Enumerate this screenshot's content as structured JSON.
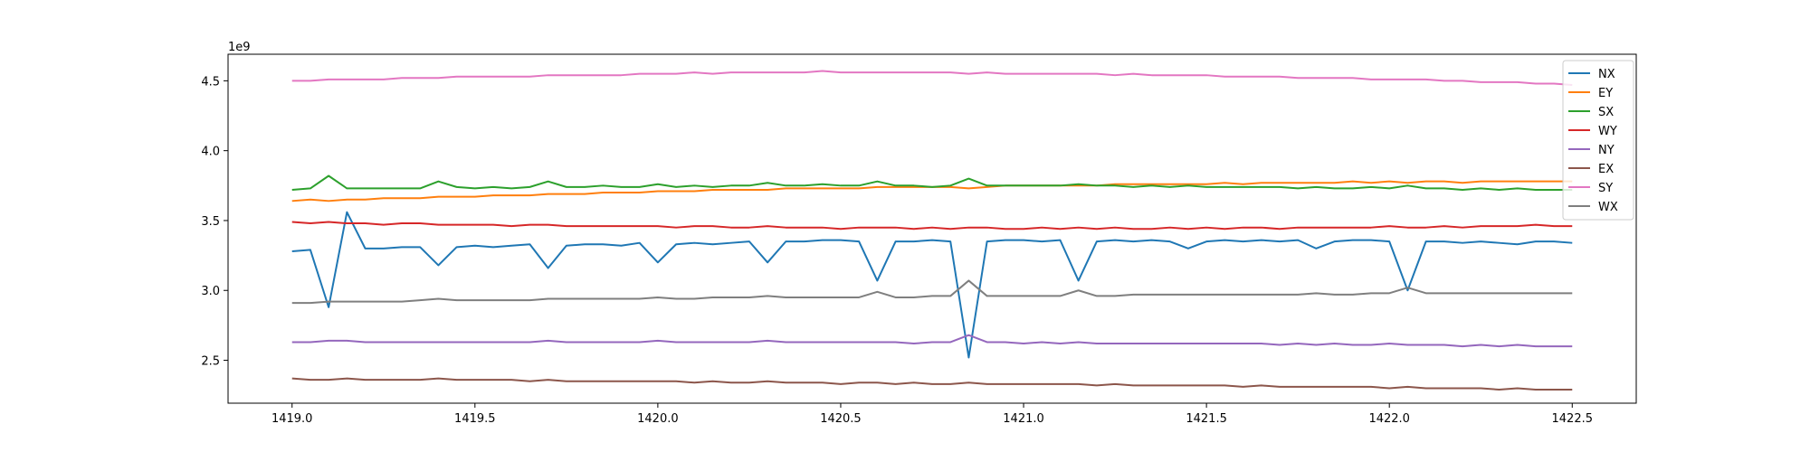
{
  "chart_data": {
    "type": "line",
    "x": [
      1419,
      1419.05,
      1419.1,
      1419.15,
      1419.2,
      1419.25,
      1419.3,
      1419.35,
      1419.4,
      1419.45,
      1419.5,
      1419.55,
      1419.6,
      1419.65,
      1419.7,
      1419.75,
      1419.8,
      1419.85,
      1419.9,
      1419.95,
      1420,
      1420.05,
      1420.1,
      1420.15,
      1420.2,
      1420.25,
      1420.3,
      1420.35,
      1420.4,
      1420.45,
      1420.5,
      1420.55,
      1420.6,
      1420.65,
      1420.7,
      1420.75,
      1420.8,
      1420.85,
      1420.9,
      1420.95,
      1421,
      1421.05,
      1421.1,
      1421.15,
      1421.2,
      1421.25,
      1421.3,
      1421.35,
      1421.4,
      1421.45,
      1421.5,
      1421.55,
      1421.6,
      1421.65,
      1421.7,
      1421.75,
      1421.8,
      1421.85,
      1421.9,
      1421.95,
      1422,
      1422.05,
      1422.1,
      1422.15,
      1422.2,
      1422.25,
      1422.3,
      1422.35,
      1422.4,
      1422.45,
      1422.5
    ],
    "series": [
      {
        "name": "NX",
        "color": "#1f77b4",
        "values": [
          3.28,
          3.29,
          2.88,
          3.56,
          3.3,
          3.3,
          3.31,
          3.31,
          3.18,
          3.31,
          3.32,
          3.31,
          3.32,
          3.33,
          3.16,
          3.32,
          3.33,
          3.33,
          3.32,
          3.34,
          3.2,
          3.33,
          3.34,
          3.33,
          3.34,
          3.35,
          3.2,
          3.35,
          3.35,
          3.36,
          3.36,
          3.35,
          3.07,
          3.35,
          3.35,
          3.36,
          3.35,
          2.52,
          3.35,
          3.36,
          3.36,
          3.35,
          3.36,
          3.07,
          3.35,
          3.36,
          3.35,
          3.36,
          3.35,
          3.3,
          3.35,
          3.36,
          3.35,
          3.36,
          3.35,
          3.36,
          3.3,
          3.35,
          3.36,
          3.36,
          3.35,
          3.0,
          3.35,
          3.35,
          3.34,
          3.35,
          3.34,
          3.33,
          3.35,
          3.35,
          3.34
        ]
      },
      {
        "name": "EY",
        "color": "#ff7f0e",
        "values": [
          3.64,
          3.65,
          3.64,
          3.65,
          3.65,
          3.66,
          3.66,
          3.66,
          3.67,
          3.67,
          3.67,
          3.68,
          3.68,
          3.68,
          3.69,
          3.69,
          3.69,
          3.7,
          3.7,
          3.7,
          3.71,
          3.71,
          3.71,
          3.72,
          3.72,
          3.72,
          3.72,
          3.73,
          3.73,
          3.73,
          3.73,
          3.73,
          3.74,
          3.74,
          3.74,
          3.74,
          3.74,
          3.73,
          3.74,
          3.75,
          3.75,
          3.75,
          3.75,
          3.75,
          3.75,
          3.76,
          3.76,
          3.76,
          3.76,
          3.76,
          3.76,
          3.77,
          3.76,
          3.77,
          3.77,
          3.77,
          3.77,
          3.77,
          3.78,
          3.77,
          3.78,
          3.77,
          3.78,
          3.78,
          3.77,
          3.78,
          3.78,
          3.78,
          3.78,
          3.78,
          3.78
        ]
      },
      {
        "name": "SX",
        "color": "#2ca02c",
        "values": [
          3.72,
          3.73,
          3.82,
          3.73,
          3.73,
          3.73,
          3.73,
          3.73,
          3.78,
          3.74,
          3.73,
          3.74,
          3.73,
          3.74,
          3.78,
          3.74,
          3.74,
          3.75,
          3.74,
          3.74,
          3.76,
          3.74,
          3.75,
          3.74,
          3.75,
          3.75,
          3.77,
          3.75,
          3.75,
          3.76,
          3.75,
          3.75,
          3.78,
          3.75,
          3.75,
          3.74,
          3.75,
          3.8,
          3.75,
          3.75,
          3.75,
          3.75,
          3.75,
          3.76,
          3.75,
          3.75,
          3.74,
          3.75,
          3.74,
          3.75,
          3.74,
          3.74,
          3.74,
          3.74,
          3.74,
          3.73,
          3.74,
          3.73,
          3.73,
          3.74,
          3.73,
          3.75,
          3.73,
          3.73,
          3.72,
          3.73,
          3.72,
          3.73,
          3.72,
          3.72,
          3.72
        ]
      },
      {
        "name": "WY",
        "color": "#d62728",
        "values": [
          3.49,
          3.48,
          3.49,
          3.48,
          3.48,
          3.47,
          3.48,
          3.48,
          3.47,
          3.47,
          3.47,
          3.47,
          3.46,
          3.47,
          3.47,
          3.46,
          3.46,
          3.46,
          3.46,
          3.46,
          3.46,
          3.45,
          3.46,
          3.46,
          3.45,
          3.45,
          3.46,
          3.45,
          3.45,
          3.45,
          3.44,
          3.45,
          3.45,
          3.45,
          3.44,
          3.45,
          3.44,
          3.45,
          3.45,
          3.44,
          3.44,
          3.45,
          3.44,
          3.45,
          3.44,
          3.45,
          3.44,
          3.44,
          3.45,
          3.44,
          3.45,
          3.44,
          3.45,
          3.45,
          3.44,
          3.45,
          3.45,
          3.45,
          3.45,
          3.45,
          3.46,
          3.45,
          3.45,
          3.46,
          3.45,
          3.46,
          3.46,
          3.46,
          3.47,
          3.46,
          3.46
        ]
      },
      {
        "name": "NY",
        "color": "#9467bd",
        "values": [
          2.63,
          2.63,
          2.64,
          2.64,
          2.63,
          2.63,
          2.63,
          2.63,
          2.63,
          2.63,
          2.63,
          2.63,
          2.63,
          2.63,
          2.64,
          2.63,
          2.63,
          2.63,
          2.63,
          2.63,
          2.64,
          2.63,
          2.63,
          2.63,
          2.63,
          2.63,
          2.64,
          2.63,
          2.63,
          2.63,
          2.63,
          2.63,
          2.63,
          2.63,
          2.62,
          2.63,
          2.63,
          2.68,
          2.63,
          2.63,
          2.62,
          2.63,
          2.62,
          2.63,
          2.62,
          2.62,
          2.62,
          2.62,
          2.62,
          2.62,
          2.62,
          2.62,
          2.62,
          2.62,
          2.61,
          2.62,
          2.61,
          2.62,
          2.61,
          2.61,
          2.62,
          2.61,
          2.61,
          2.61,
          2.6,
          2.61,
          2.6,
          2.61,
          2.6,
          2.6,
          2.6
        ]
      },
      {
        "name": "EX",
        "color": "#8c564b",
        "values": [
          2.37,
          2.36,
          2.36,
          2.37,
          2.36,
          2.36,
          2.36,
          2.36,
          2.37,
          2.36,
          2.36,
          2.36,
          2.36,
          2.35,
          2.36,
          2.35,
          2.35,
          2.35,
          2.35,
          2.35,
          2.35,
          2.35,
          2.34,
          2.35,
          2.34,
          2.34,
          2.35,
          2.34,
          2.34,
          2.34,
          2.33,
          2.34,
          2.34,
          2.33,
          2.34,
          2.33,
          2.33,
          2.34,
          2.33,
          2.33,
          2.33,
          2.33,
          2.33,
          2.33,
          2.32,
          2.33,
          2.32,
          2.32,
          2.32,
          2.32,
          2.32,
          2.32,
          2.31,
          2.32,
          2.31,
          2.31,
          2.31,
          2.31,
          2.31,
          2.31,
          2.3,
          2.31,
          2.3,
          2.3,
          2.3,
          2.3,
          2.29,
          2.3,
          2.29,
          2.29,
          2.29
        ]
      },
      {
        "name": "SY",
        "color": "#e377c2",
        "values": [
          4.5,
          4.5,
          4.51,
          4.51,
          4.51,
          4.51,
          4.52,
          4.52,
          4.52,
          4.53,
          4.53,
          4.53,
          4.53,
          4.53,
          4.54,
          4.54,
          4.54,
          4.54,
          4.54,
          4.55,
          4.55,
          4.55,
          4.56,
          4.55,
          4.56,
          4.56,
          4.56,
          4.56,
          4.56,
          4.57,
          4.56,
          4.56,
          4.56,
          4.56,
          4.56,
          4.56,
          4.56,
          4.55,
          4.56,
          4.55,
          4.55,
          4.55,
          4.55,
          4.55,
          4.55,
          4.54,
          4.55,
          4.54,
          4.54,
          4.54,
          4.54,
          4.53,
          4.53,
          4.53,
          4.53,
          4.52,
          4.52,
          4.52,
          4.52,
          4.51,
          4.51,
          4.51,
          4.51,
          4.5,
          4.5,
          4.49,
          4.49,
          4.49,
          4.48,
          4.48,
          4.47
        ]
      },
      {
        "name": "WX",
        "color": "#7f7f7f",
        "values": [
          2.91,
          2.91,
          2.92,
          2.92,
          2.92,
          2.92,
          2.92,
          2.93,
          2.94,
          2.93,
          2.93,
          2.93,
          2.93,
          2.93,
          2.94,
          2.94,
          2.94,
          2.94,
          2.94,
          2.94,
          2.95,
          2.94,
          2.94,
          2.95,
          2.95,
          2.95,
          2.96,
          2.95,
          2.95,
          2.95,
          2.95,
          2.95,
          2.99,
          2.95,
          2.95,
          2.96,
          2.96,
          3.07,
          2.96,
          2.96,
          2.96,
          2.96,
          2.96,
          3.0,
          2.96,
          2.96,
          2.97,
          2.97,
          2.97,
          2.97,
          2.97,
          2.97,
          2.97,
          2.97,
          2.97,
          2.97,
          2.98,
          2.97,
          2.97,
          2.98,
          2.98,
          3.02,
          2.98,
          2.98,
          2.98,
          2.98,
          2.98,
          2.98,
          2.98,
          2.98,
          2.98
        ]
      }
    ],
    "xlim": [
      1418.825,
      1422.675
    ],
    "xticks": [
      {
        "value": 1419,
        "label": "1419.0"
      },
      1419.5,
      {
        "value": 1420,
        "label": "1420.0"
      },
      1420.5,
      {
        "value": 1421,
        "label": "1421.0"
      },
      1421.5,
      {
        "value": 1422,
        "label": "1422.0"
      },
      1422.5
    ],
    "ylim": [
      2.193,
      4.69
    ],
    "yticks": [
      2.5,
      {
        "value": 3,
        "label": "3.0"
      },
      3.5,
      {
        "value": 4,
        "label": "4.0"
      },
      4.5
    ],
    "y_offset_label": "1e9",
    "legend": "upper right",
    "grid": false
  }
}
